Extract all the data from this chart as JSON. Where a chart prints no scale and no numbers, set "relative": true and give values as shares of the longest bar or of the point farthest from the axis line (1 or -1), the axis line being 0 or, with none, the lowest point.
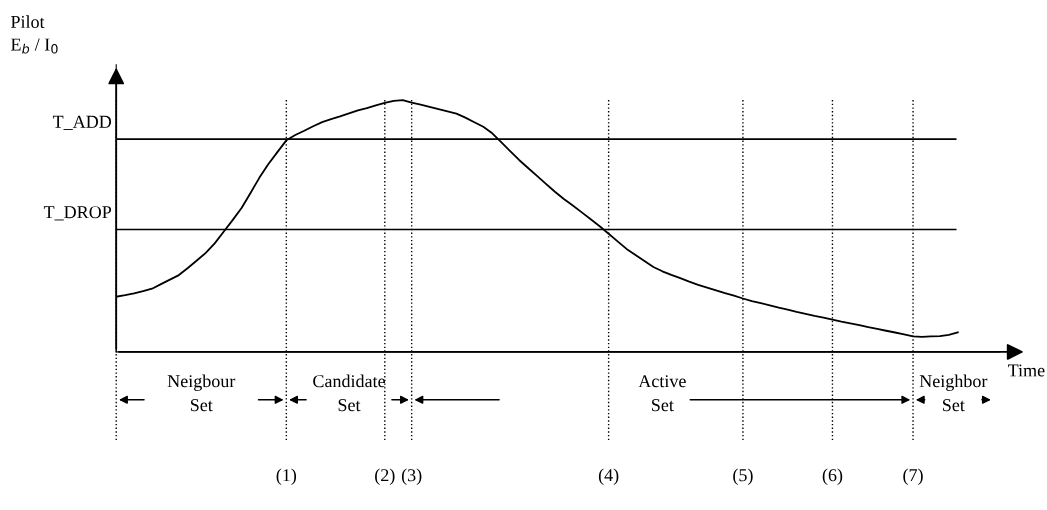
{
  "chart_data": {
    "type": "line",
    "relative": true,
    "xlabel": "Time",
    "ylabel": "Pilot\nE$_{b}$ / I$_{0}$",
    "categories": [
      null,
      null,
      null,
      null,
      null,
      null,
      null,
      null,
      null,
      null,
      null,
      null,
      null,
      null,
      null,
      null,
      null,
      null,
      null,
      "(1)",
      null,
      null,
      null,
      null,
      null,
      null,
      null,
      null,
      null,
      null,
      "(2)",
      null,
      null,
      "(3)",
      null,
      null,
      null,
      null,
      null,
      null,
      null,
      null,
      null,
      null,
      null,
      null,
      null,
      null,
      null,
      null,
      null,
      null,
      null,
      null,
      null,
      "(4)",
      null,
      null,
      null,
      null,
      null,
      null,
      null,
      null,
      null,
      null,
      null,
      null,
      null,
      null,
      "(5)",
      null,
      null,
      null,
      null,
      null,
      null,
      null,
      null,
      null,
      "(6)",
      null,
      null,
      null,
      null,
      null,
      null,
      null,
      null,
      "(7)",
      null,
      null,
      null,
      null,
      null
    ],
    "values": [
      0.219,
      0.225,
      0.232,
      0.241,
      0.251,
      0.269,
      0.287,
      0.305,
      0.333,
      0.363,
      0.393,
      0.431,
      0.477,
      0.523,
      0.571,
      0.631,
      0.692,
      0.746,
      0.793,
      0.84,
      0.861,
      0.878,
      0.896,
      0.912,
      0.924,
      0.935,
      0.947,
      0.959,
      0.968,
      0.979,
      0.989,
      0.997,
      1.0,
      0.99,
      0.982,
      0.973,
      0.964,
      0.955,
      0.946,
      0.93,
      0.912,
      0.894,
      0.868,
      0.833,
      0.797,
      0.762,
      0.73,
      0.699,
      0.667,
      0.636,
      0.607,
      0.581,
      0.554,
      0.527,
      0.499,
      0.469,
      0.439,
      0.409,
      0.385,
      0.361,
      0.337,
      0.32,
      0.306,
      0.293,
      0.279,
      0.266,
      0.255,
      0.244,
      0.233,
      0.223,
      0.212,
      0.202,
      0.194,
      0.185,
      0.176,
      0.168,
      0.159,
      0.151,
      0.143,
      0.136,
      0.128,
      0.12,
      0.113,
      0.106,
      0.098,
      0.091,
      0.084,
      0.077,
      0.07,
      0.062,
      0.06,
      0.062,
      0.063,
      0.068,
      0.078
    ],
    "color": "#000000",
    "grid": "x",
    "marker": "none",
    "line_style": "solid",
    "ref_lines": [
      {
        "axis": "y",
        "value": 0.845,
        "label": "T_ADD",
        "line_style": "solid"
      },
      {
        "axis": "y",
        "value": 0.486,
        "label": "T_DROP",
        "line_style": "solid"
      }
    ],
    "annotations": [
      "Neigbour\nSet",
      "Candidate\nSet",
      "Active\nSet",
      "Neighbor\nSet"
    ]
  }
}
